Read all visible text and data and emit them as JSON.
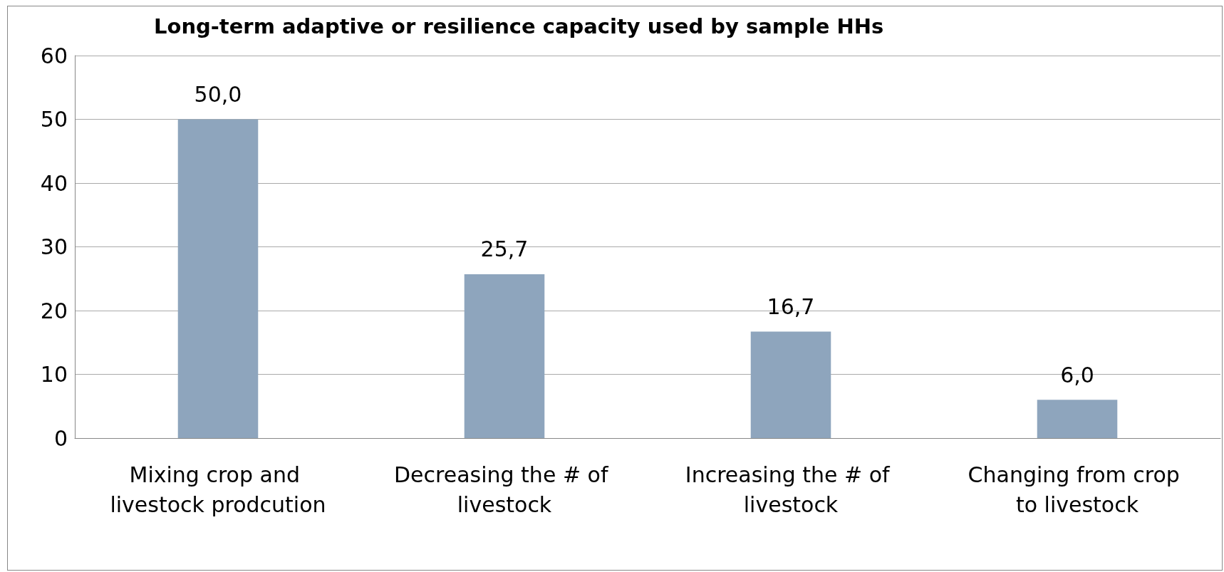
{
  "chart_data": {
    "type": "bar",
    "title": "Long-term adaptive or resilience capacity used by sample HHs",
    "categories": [
      "Mixing crop and livestock prodcution",
      "Decreasing the # of livestock",
      "Increasing the # of livestock",
      "Changing from crop to livestock"
    ],
    "values": [
      50.0,
      25.7,
      16.7,
      6.0
    ],
    "value_labels": [
      "50,0",
      "25,7",
      "16,7",
      "6,0"
    ],
    "color": "#8ea5bd",
    "ylim": [
      0,
      60
    ],
    "yticks": [
      0,
      10,
      20,
      30,
      40,
      50,
      60
    ],
    "grid": "y"
  }
}
